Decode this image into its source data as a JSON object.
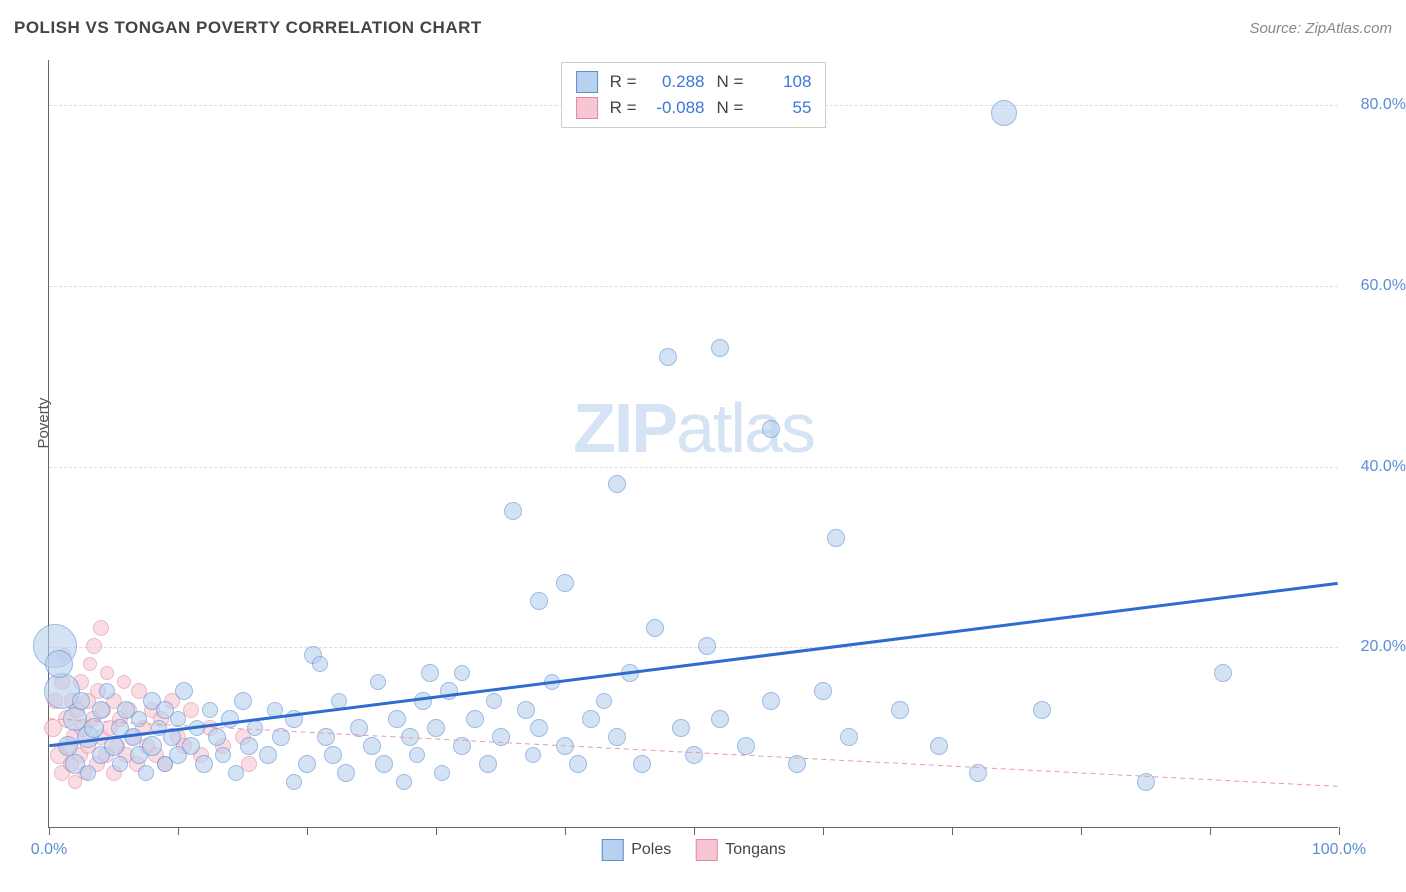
{
  "header": {
    "title": "POLISH VS TONGAN POVERTY CORRELATION CHART",
    "source": "Source: ZipAtlas.com"
  },
  "watermark": {
    "part1": "ZIP",
    "part2": "atlas"
  },
  "axes": {
    "ylabel": "Poverty",
    "xlim": [
      0,
      100
    ],
    "ylim": [
      0,
      85
    ],
    "y_gridlines": [
      20,
      40,
      60,
      80
    ],
    "y_tick_labels": [
      "20.0%",
      "40.0%",
      "60.0%",
      "80.0%"
    ],
    "x_ticks": [
      0,
      10,
      20,
      30,
      40,
      50,
      60,
      70,
      80,
      90,
      100
    ],
    "x_tick_labels_shown": {
      "0": "0.0%",
      "100": "100.0%"
    },
    "grid_color": "#dddddd",
    "axis_color": "#666666",
    "tick_label_color": "#5b8dd6",
    "tick_fontsize": 16,
    "label_fontsize": 15
  },
  "series": {
    "poles": {
      "label": "Poles",
      "fill": "#b8d1ee",
      "fill_opacity": 0.6,
      "stroke": "#5b8dd6",
      "stroke_width": 1,
      "R": "0.288",
      "N": "108",
      "trend": {
        "y_at_x0": 9.0,
        "y_at_x100": 27.0,
        "color": "#2e6cd1",
        "width": 3,
        "dash": "none"
      },
      "points": [
        {
          "x": 0.5,
          "y": 20,
          "r": 22
        },
        {
          "x": 1,
          "y": 15,
          "r": 18
        },
        {
          "x": 0.8,
          "y": 18,
          "r": 14
        },
        {
          "x": 1.5,
          "y": 9,
          "r": 10
        },
        {
          "x": 2,
          "y": 12,
          "r": 12
        },
        {
          "x": 2,
          "y": 7,
          "r": 10
        },
        {
          "x": 2.5,
          "y": 14,
          "r": 9
        },
        {
          "x": 3,
          "y": 10,
          "r": 11
        },
        {
          "x": 3,
          "y": 6,
          "r": 8
        },
        {
          "x": 3.5,
          "y": 11,
          "r": 10
        },
        {
          "x": 4,
          "y": 13,
          "r": 9
        },
        {
          "x": 4,
          "y": 8,
          "r": 9
        },
        {
          "x": 4.5,
          "y": 15,
          "r": 8
        },
        {
          "x": 5,
          "y": 9,
          "r": 10
        },
        {
          "x": 5.5,
          "y": 11,
          "r": 9
        },
        {
          "x": 5.5,
          "y": 7,
          "r": 8
        },
        {
          "x": 6,
          "y": 13,
          "r": 9
        },
        {
          "x": 6.5,
          "y": 10,
          "r": 9
        },
        {
          "x": 7,
          "y": 8,
          "r": 9
        },
        {
          "x": 7,
          "y": 12,
          "r": 8
        },
        {
          "x": 7.5,
          "y": 6,
          "r": 8
        },
        {
          "x": 8,
          "y": 14,
          "r": 9
        },
        {
          "x": 8,
          "y": 9,
          "r": 10
        },
        {
          "x": 8.5,
          "y": 11,
          "r": 8
        },
        {
          "x": 9,
          "y": 13,
          "r": 9
        },
        {
          "x": 9,
          "y": 7,
          "r": 8
        },
        {
          "x": 9.5,
          "y": 10,
          "r": 9
        },
        {
          "x": 10,
          "y": 8,
          "r": 9
        },
        {
          "x": 10,
          "y": 12,
          "r": 8
        },
        {
          "x": 10.5,
          "y": 15,
          "r": 9
        },
        {
          "x": 11,
          "y": 9,
          "r": 9
        },
        {
          "x": 11.5,
          "y": 11,
          "r": 8
        },
        {
          "x": 12,
          "y": 7,
          "r": 9
        },
        {
          "x": 12.5,
          "y": 13,
          "r": 8
        },
        {
          "x": 13,
          "y": 10,
          "r": 9
        },
        {
          "x": 13.5,
          "y": 8,
          "r": 8
        },
        {
          "x": 14,
          "y": 12,
          "r": 9
        },
        {
          "x": 14.5,
          "y": 6,
          "r": 8
        },
        {
          "x": 15,
          "y": 14,
          "r": 9
        },
        {
          "x": 15.5,
          "y": 9,
          "r": 9
        },
        {
          "x": 16,
          "y": 11,
          "r": 8
        },
        {
          "x": 17,
          "y": 8,
          "r": 9
        },
        {
          "x": 17.5,
          "y": 13,
          "r": 8
        },
        {
          "x": 18,
          "y": 10,
          "r": 9
        },
        {
          "x": 19,
          "y": 12,
          "r": 9
        },
        {
          "x": 19,
          "y": 5,
          "r": 8
        },
        {
          "x": 20,
          "y": 7,
          "r": 9
        },
        {
          "x": 20.5,
          "y": 19,
          "r": 9
        },
        {
          "x": 21,
          "y": 18,
          "r": 8
        },
        {
          "x": 21.5,
          "y": 10,
          "r": 9
        },
        {
          "x": 22,
          "y": 8,
          "r": 9
        },
        {
          "x": 22.5,
          "y": 14,
          "r": 8
        },
        {
          "x": 23,
          "y": 6,
          "r": 9
        },
        {
          "x": 24,
          "y": 11,
          "r": 9
        },
        {
          "x": 25,
          "y": 9,
          "r": 9
        },
        {
          "x": 25.5,
          "y": 16,
          "r": 8
        },
        {
          "x": 26,
          "y": 7,
          "r": 9
        },
        {
          "x": 27,
          "y": 12,
          "r": 9
        },
        {
          "x": 27.5,
          "y": 5,
          "r": 8
        },
        {
          "x": 28,
          "y": 10,
          "r": 9
        },
        {
          "x": 28.5,
          "y": 8,
          "r": 8
        },
        {
          "x": 29,
          "y": 14,
          "r": 9
        },
        {
          "x": 29.5,
          "y": 17,
          "r": 9
        },
        {
          "x": 30,
          "y": 11,
          "r": 9
        },
        {
          "x": 30.5,
          "y": 6,
          "r": 8
        },
        {
          "x": 31,
          "y": 15,
          "r": 9
        },
        {
          "x": 32,
          "y": 9,
          "r": 9
        },
        {
          "x": 32,
          "y": 17,
          "r": 8
        },
        {
          "x": 33,
          "y": 12,
          "r": 9
        },
        {
          "x": 34,
          "y": 7,
          "r": 9
        },
        {
          "x": 34.5,
          "y": 14,
          "r": 8
        },
        {
          "x": 35,
          "y": 10,
          "r": 9
        },
        {
          "x": 36,
          "y": 35,
          "r": 9
        },
        {
          "x": 37,
          "y": 13,
          "r": 9
        },
        {
          "x": 37.5,
          "y": 8,
          "r": 8
        },
        {
          "x": 38,
          "y": 25,
          "r": 9
        },
        {
          "x": 38,
          "y": 11,
          "r": 9
        },
        {
          "x": 39,
          "y": 16,
          "r": 8
        },
        {
          "x": 40,
          "y": 27,
          "r": 9
        },
        {
          "x": 40,
          "y": 9,
          "r": 9
        },
        {
          "x": 41,
          "y": 7,
          "r": 9
        },
        {
          "x": 42,
          "y": 12,
          "r": 9
        },
        {
          "x": 43,
          "y": 14,
          "r": 8
        },
        {
          "x": 44,
          "y": 38,
          "r": 9
        },
        {
          "x": 44,
          "y": 10,
          "r": 9
        },
        {
          "x": 45,
          "y": 17,
          "r": 9
        },
        {
          "x": 46,
          "y": 7,
          "r": 9
        },
        {
          "x": 47,
          "y": 22,
          "r": 9
        },
        {
          "x": 48,
          "y": 52,
          "r": 9
        },
        {
          "x": 49,
          "y": 11,
          "r": 9
        },
        {
          "x": 50,
          "y": 8,
          "r": 9
        },
        {
          "x": 51,
          "y": 20,
          "r": 9
        },
        {
          "x": 52,
          "y": 53,
          "r": 9
        },
        {
          "x": 52,
          "y": 12,
          "r": 9
        },
        {
          "x": 54,
          "y": 9,
          "r": 9
        },
        {
          "x": 56,
          "y": 44,
          "r": 9
        },
        {
          "x": 56,
          "y": 14,
          "r": 9
        },
        {
          "x": 58,
          "y": 7,
          "r": 9
        },
        {
          "x": 60,
          "y": 15,
          "r": 9
        },
        {
          "x": 61,
          "y": 32,
          "r": 9
        },
        {
          "x": 62,
          "y": 10,
          "r": 9
        },
        {
          "x": 66,
          "y": 13,
          "r": 9
        },
        {
          "x": 69,
          "y": 9,
          "r": 9
        },
        {
          "x": 72,
          "y": 6,
          "r": 9
        },
        {
          "x": 74,
          "y": 79,
          "r": 13
        },
        {
          "x": 77,
          "y": 13,
          "r": 9
        },
        {
          "x": 85,
          "y": 5,
          "r": 9
        },
        {
          "x": 91,
          "y": 17,
          "r": 9
        }
      ]
    },
    "tongans": {
      "label": "Tongans",
      "fill": "#f7c6d2",
      "fill_opacity": 0.6,
      "stroke": "#e08ba3",
      "stroke_width": 1,
      "R": "-0.088",
      "N": "55",
      "trend": {
        "y_at_x0": 12.0,
        "y_at_x100": 4.5,
        "color": "#e59aad",
        "width": 1,
        "dash": "5,4"
      },
      "points": [
        {
          "x": 0.3,
          "y": 11,
          "r": 9
        },
        {
          "x": 0.5,
          "y": 14,
          "r": 8
        },
        {
          "x": 0.8,
          "y": 8,
          "r": 9
        },
        {
          "x": 1,
          "y": 16,
          "r": 8
        },
        {
          "x": 1,
          "y": 6,
          "r": 8
        },
        {
          "x": 1.2,
          "y": 19,
          "r": 7
        },
        {
          "x": 1.4,
          "y": 12,
          "r": 9
        },
        {
          "x": 1.5,
          "y": 9,
          "r": 8
        },
        {
          "x": 1.7,
          "y": 7,
          "r": 8
        },
        {
          "x": 1.8,
          "y": 14,
          "r": 8
        },
        {
          "x": 2,
          "y": 10,
          "r": 9
        },
        {
          "x": 2,
          "y": 5,
          "r": 7
        },
        {
          "x": 2.2,
          "y": 13,
          "r": 8
        },
        {
          "x": 2.4,
          "y": 8,
          "r": 8
        },
        {
          "x": 2.5,
          "y": 16,
          "r": 8
        },
        {
          "x": 2.6,
          "y": 11,
          "r": 9
        },
        {
          "x": 2.8,
          "y": 6,
          "r": 7
        },
        {
          "x": 3,
          "y": 14,
          "r": 8
        },
        {
          "x": 3,
          "y": 9,
          "r": 8
        },
        {
          "x": 3.2,
          "y": 18,
          "r": 7
        },
        {
          "x": 3.4,
          "y": 12,
          "r": 8
        },
        {
          "x": 3.5,
          "y": 20,
          "r": 8
        },
        {
          "x": 3.7,
          "y": 7,
          "r": 8
        },
        {
          "x": 3.8,
          "y": 15,
          "r": 8
        },
        {
          "x": 4,
          "y": 10,
          "r": 8
        },
        {
          "x": 4,
          "y": 22,
          "r": 8
        },
        {
          "x": 4.2,
          "y": 13,
          "r": 8
        },
        {
          "x": 4.4,
          "y": 8,
          "r": 8
        },
        {
          "x": 4.5,
          "y": 17,
          "r": 7
        },
        {
          "x": 4.7,
          "y": 11,
          "r": 8
        },
        {
          "x": 5,
          "y": 6,
          "r": 8
        },
        {
          "x": 5,
          "y": 14,
          "r": 8
        },
        {
          "x": 5.3,
          "y": 9,
          "r": 8
        },
        {
          "x": 5.5,
          "y": 12,
          "r": 8
        },
        {
          "x": 5.8,
          "y": 16,
          "r": 7
        },
        {
          "x": 6,
          "y": 8,
          "r": 8
        },
        {
          "x": 6.2,
          "y": 13,
          "r": 8
        },
        {
          "x": 6.5,
          "y": 10,
          "r": 8
        },
        {
          "x": 6.8,
          "y": 7,
          "r": 8
        },
        {
          "x": 7,
          "y": 15,
          "r": 8
        },
        {
          "x": 7.3,
          "y": 11,
          "r": 8
        },
        {
          "x": 7.6,
          "y": 9,
          "r": 8
        },
        {
          "x": 8,
          "y": 13,
          "r": 8
        },
        {
          "x": 8.3,
          "y": 8,
          "r": 8
        },
        {
          "x": 8.7,
          "y": 12,
          "r": 8
        },
        {
          "x": 9,
          "y": 7,
          "r": 8
        },
        {
          "x": 9.5,
          "y": 14,
          "r": 8
        },
        {
          "x": 10,
          "y": 10,
          "r": 8
        },
        {
          "x": 10.5,
          "y": 9,
          "r": 8
        },
        {
          "x": 11,
          "y": 13,
          "r": 8
        },
        {
          "x": 11.8,
          "y": 8,
          "r": 8
        },
        {
          "x": 12.5,
          "y": 11,
          "r": 8
        },
        {
          "x": 13.5,
          "y": 9,
          "r": 8
        },
        {
          "x": 15,
          "y": 10,
          "r": 8
        },
        {
          "x": 15.5,
          "y": 7,
          "r": 8
        }
      ]
    }
  },
  "top_legend": {
    "r_label": "R =",
    "n_label": "N ="
  },
  "bottom_legend": {
    "items": [
      {
        "key": "poles",
        "label": "Poles"
      },
      {
        "key": "tongans",
        "label": "Tongans"
      }
    ]
  }
}
